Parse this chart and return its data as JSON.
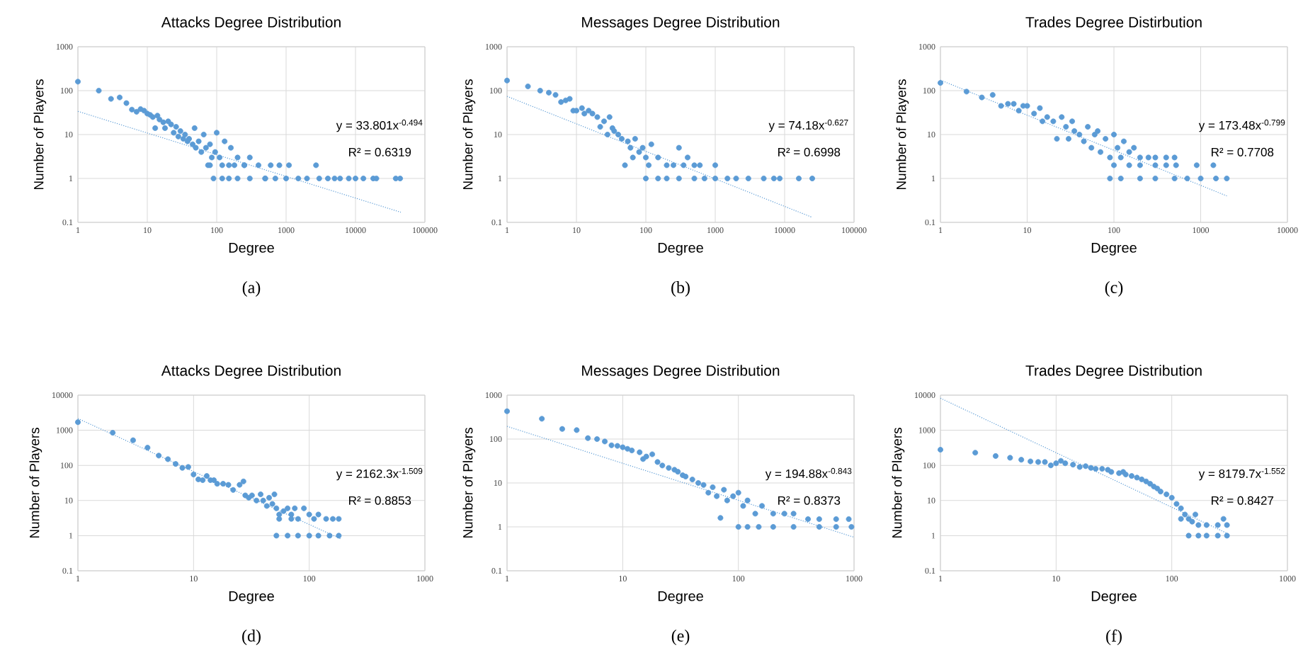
{
  "chart_data": [
    {
      "type": "scatter",
      "title": "Attacks Degree Distribution",
      "xlabel": "Degree",
      "ylabel": "Number of Players",
      "log": "xy",
      "grid": true,
      "xlim": [
        1,
        100000
      ],
      "ylim": [
        0.1,
        1000
      ],
      "xticks": [
        1,
        10,
        100,
        1000,
        10000,
        100000
      ],
      "yticks": [
        0.1,
        1,
        10,
        100,
        1000
      ],
      "annotations": [
        "y = 33.801x$^{-0.494}$",
        "R² = 0.6319",
        "(a)"
      ],
      "series": [
        {
          "marker": "circle",
          "color": "#5b9bd5",
          "x": [
            1,
            2,
            3,
            4,
            5,
            6,
            7,
            8,
            9,
            10,
            11,
            12,
            13,
            14,
            15,
            17,
            18,
            20,
            22,
            24,
            26,
            28,
            30,
            33,
            35,
            38,
            40,
            45,
            48,
            50,
            55,
            60,
            65,
            70,
            75,
            80,
            85,
            90,
            95,
            100,
            110,
            120,
            130,
            150,
            160,
            200,
            250,
            300,
            400,
            500,
            600,
            800,
            1000,
            1100,
            2000,
            2700,
            5000,
            8000,
            10000,
            13000,
            18000,
            20000,
            38000,
            44000,
            150,
            200,
            300,
            500,
            700,
            1500,
            3000,
            4000,
            6000,
            80,
            120,
            180,
            250
          ],
          "values": [
            160,
            100,
            65,
            70,
            52,
            37,
            33,
            38,
            35,
            30,
            28,
            25,
            14,
            27,
            22,
            19,
            14,
            20,
            17,
            11,
            15,
            9,
            12,
            8,
            10,
            7,
            8,
            6,
            14,
            5,
            7,
            4,
            10,
            5,
            2,
            6,
            3,
            1,
            4,
            11,
            3,
            1,
            7,
            2,
            5,
            3,
            2,
            3,
            2,
            1,
            2,
            2,
            1,
            2,
            1,
            2,
            1,
            1,
            1,
            1,
            1,
            1,
            1,
            1,
            1,
            1,
            1,
            1,
            1,
            1,
            1,
            1,
            1,
            2,
            2,
            2,
            2
          ]
        },
        {
          "type": "line",
          "color": "#5b9bd5",
          "line_style": "dotted",
          "x": [
            1,
            45000
          ],
          "values": [
            33.8,
            0.17
          ]
        }
      ]
    },
    {
      "type": "scatter",
      "title": "Messages Degree Distribution",
      "xlabel": "Degree",
      "ylabel": "Number of Players",
      "log": "xy",
      "grid": true,
      "xlim": [
        1,
        100000
      ],
      "ylim": [
        0.1,
        1000
      ],
      "xticks": [
        1,
        10,
        100,
        1000,
        10000,
        100000
      ],
      "yticks": [
        0.1,
        1,
        10,
        100,
        1000
      ],
      "annotations": [
        "y = 74.18x$^{-0.627}$",
        "R² = 0.6998",
        "(b)"
      ],
      "series": [
        {
          "marker": "circle",
          "color": "#5b9bd5",
          "x": [
            1,
            2,
            3,
            4,
            5,
            6,
            7,
            8,
            9,
            10,
            12,
            13,
            15,
            17,
            20,
            22,
            25,
            28,
            30,
            33,
            35,
            40,
            45,
            50,
            55,
            60,
            65,
            70,
            80,
            90,
            100,
            110,
            120,
            150,
            200,
            250,
            300,
            350,
            400,
            500,
            600,
            1000,
            100,
            150,
            200,
            300,
            500,
            700,
            1000,
            1500,
            2000,
            3000,
            5000,
            7000,
            8500,
            16000,
            25000
          ],
          "values": [
            170,
            125,
            100,
            90,
            80,
            55,
            60,
            65,
            35,
            35,
            40,
            30,
            35,
            30,
            25,
            15,
            20,
            10,
            25,
            14,
            12,
            10,
            8,
            2,
            7,
            5,
            3,
            8,
            4,
            5,
            3,
            2,
            6,
            3,
            2,
            2,
            5,
            2,
            3,
            2,
            2,
            2,
            1,
            1,
            1,
            1,
            1,
            1,
            1,
            1,
            1,
            1,
            1,
            1,
            1,
            1,
            1
          ]
        },
        {
          "type": "line",
          "color": "#5b9bd5",
          "line_style": "dotted",
          "x": [
            1,
            25000
          ],
          "values": [
            74.18,
            0.13
          ]
        }
      ]
    },
    {
      "type": "scatter",
      "title": "Trades Degree Distirbution",
      "xlabel": "Degree",
      "ylabel": "Number of Players",
      "log": "xy",
      "grid": true,
      "xlim": [
        1,
        10000
      ],
      "ylim": [
        0.1,
        1000
      ],
      "xticks": [
        1,
        10,
        100,
        1000,
        10000
      ],
      "yticks": [
        0.1,
        1,
        10,
        100,
        1000
      ],
      "annotations": [
        "y = 173.48x$^{-0.799}$",
        "R² = 0.7708",
        "(c)"
      ],
      "series": [
        {
          "marker": "circle",
          "color": "#5b9bd5",
          "x": [
            1,
            2,
            3,
            4,
            5,
            6,
            7,
            8,
            9,
            10,
            12,
            14,
            15,
            17,
            20,
            22,
            25,
            28,
            30,
            33,
            35,
            40,
            45,
            50,
            55,
            60,
            65,
            70,
            80,
            90,
            100,
            110,
            120,
            130,
            150,
            170,
            200,
            250,
            300,
            400,
            500,
            100,
            150,
            200,
            300,
            400,
            520,
            900,
            1400,
            90,
            120,
            200,
            300,
            500,
            700,
            1000,
            1500,
            2000
          ],
          "values": [
            150,
            95,
            70,
            80,
            45,
            50,
            50,
            35,
            45,
            45,
            30,
            40,
            20,
            25,
            20,
            8,
            25,
            15,
            8,
            20,
            12,
            10,
            7,
            15,
            5,
            10,
            12,
            4,
            8,
            3,
            10,
            5,
            3,
            7,
            4,
            5,
            3,
            3,
            3,
            3,
            3,
            2,
            2,
            2,
            2,
            2,
            2,
            2,
            2,
            1,
            1,
            1,
            1,
            1,
            1,
            1,
            1,
            1
          ]
        },
        {
          "type": "line",
          "color": "#5b9bd5",
          "line_style": "dotted",
          "x": [
            1,
            2000
          ],
          "values": [
            173.48,
            0.4
          ]
        }
      ]
    },
    {
      "type": "scatter",
      "title": "Attacks Degree Distribution",
      "xlabel": "Degree",
      "ylabel": "Number of Players",
      "log": "xy",
      "grid": true,
      "xlim": [
        1,
        1000
      ],
      "ylim": [
        0.1,
        10000
      ],
      "xticks": [
        1,
        10,
        100,
        1000
      ],
      "yticks": [
        0.1,
        1,
        10,
        100,
        1000,
        10000
      ],
      "annotations": [
        "y = 2162.3x$^{-1.509}$",
        "R² = 0.8853",
        "(d)"
      ],
      "series": [
        {
          "marker": "circle",
          "color": "#5b9bd5",
          "x": [
            1,
            2,
            3,
            4,
            5,
            6,
            7,
            8,
            9,
            10,
            11,
            12,
            13,
            14,
            15,
            16,
            18,
            20,
            22,
            25,
            27,
            28,
            30,
            32,
            35,
            38,
            40,
            43,
            45,
            48,
            50,
            52,
            55,
            60,
            65,
            70,
            75,
            80,
            90,
            100,
            110,
            120,
            140,
            160,
            180,
            55,
            70,
            52,
            65,
            80,
            100,
            120,
            150,
            180
          ],
          "values": [
            1700,
            850,
            520,
            320,
            190,
            150,
            110,
            85,
            90,
            55,
            40,
            38,
            50,
            38,
            38,
            30,
            30,
            28,
            20,
            28,
            35,
            14,
            12,
            14,
            10,
            15,
            10,
            7,
            12,
            8,
            15,
            6,
            4,
            5,
            6,
            4,
            6,
            3,
            6,
            4,
            3,
            4,
            3,
            3,
            3,
            3,
            3,
            1,
            1,
            1,
            1,
            1,
            1,
            1
          ]
        },
        {
          "type": "line",
          "color": "#5b9bd5",
          "line_style": "dotted",
          "x": [
            1,
            190
          ],
          "values": [
            2162.3,
            0.79
          ]
        }
      ]
    },
    {
      "type": "scatter",
      "title": "Messages Degree Distribution",
      "xlabel": "Degree",
      "ylabel": "Number of Players",
      "log": "xy",
      "grid": true,
      "xlim": [
        1,
        1000
      ],
      "ylim": [
        0.1,
        1000
      ],
      "xticks": [
        1,
        10,
        100,
        1000
      ],
      "yticks": [
        0.1,
        1,
        10,
        100,
        1000
      ],
      "annotations": [
        "y = 194.88x$^{-0.843}$",
        "R² = 0.8373",
        "(e)"
      ],
      "series": [
        {
          "marker": "circle",
          "color": "#5b9bd5",
          "x": [
            1,
            2,
            3,
            4,
            5,
            6,
            7,
            8,
            9,
            10,
            11,
            12,
            14,
            15,
            16,
            18,
            20,
            22,
            25,
            28,
            30,
            33,
            35,
            40,
            45,
            50,
            55,
            60,
            65,
            70,
            75,
            80,
            90,
            100,
            110,
            120,
            140,
            160,
            200,
            250,
            300,
            400,
            500,
            700,
            900,
            100,
            120,
            150,
            200,
            300,
            500,
            700,
            950
          ],
          "values": [
            430,
            290,
            170,
            160,
            105,
            100,
            88,
            72,
            70,
            65,
            60,
            55,
            50,
            35,
            40,
            45,
            30,
            25,
            22,
            20,
            18,
            15,
            14,
            12,
            10,
            9,
            6,
            8,
            5,
            1.6,
            7,
            4,
            5,
            6,
            3,
            4,
            2,
            3,
            2,
            2,
            2,
            1.5,
            1.5,
            1.5,
            1.5,
            1,
            1,
            1,
            1,
            1,
            1,
            1,
            1
          ]
        },
        {
          "type": "line",
          "color": "#5b9bd5",
          "line_style": "dotted",
          "x": [
            1,
            1000
          ],
          "values": [
            194.88,
            0.58
          ]
        }
      ]
    },
    {
      "type": "scatter",
      "title": "Trades Degree Distribution",
      "xlabel": "Degree",
      "ylabel": "Number of Players",
      "log": "xy",
      "grid": true,
      "xlim": [
        1,
        1000
      ],
      "ylim": [
        0.1,
        10000
      ],
      "xticks": [
        1,
        10,
        100,
        1000
      ],
      "yticks": [
        0.1,
        1,
        10,
        100,
        1000,
        10000
      ],
      "annotations": [
        "y = 8179.7x$^{-1.552}$",
        "R² = 0.8427",
        "(f)"
      ],
      "series": [
        {
          "marker": "circle",
          "color": "#5b9bd5",
          "x": [
            1,
            2,
            3,
            4,
            5,
            6,
            7,
            8,
            9,
            10,
            11,
            12,
            14,
            16,
            18,
            20,
            22,
            25,
            28,
            30,
            35,
            38,
            40,
            45,
            50,
            55,
            60,
            65,
            70,
            75,
            80,
            90,
            100,
            110,
            120,
            130,
            140,
            150,
            170,
            200,
            250,
            280,
            300,
            140,
            170,
            200,
            250,
            300,
            120,
            160
          ],
          "values": [
            280,
            230,
            185,
            165,
            145,
            130,
            125,
            125,
            100,
            115,
            135,
            115,
            105,
            90,
            95,
            85,
            80,
            80,
            75,
            65,
            60,
            65,
            55,
            50,
            45,
            40,
            35,
            30,
            25,
            22,
            18,
            15,
            12,
            8,
            6,
            4,
            3,
            2.5,
            2,
            2,
            2,
            3,
            2,
            1,
            1,
            1,
            1,
            1,
            3,
            4
          ]
        },
        {
          "type": "line",
          "color": "#5b9bd5",
          "line_style": "dotted",
          "x": [
            1,
            300
          ],
          "values": [
            8179.7,
            1.17
          ]
        }
      ]
    }
  ]
}
